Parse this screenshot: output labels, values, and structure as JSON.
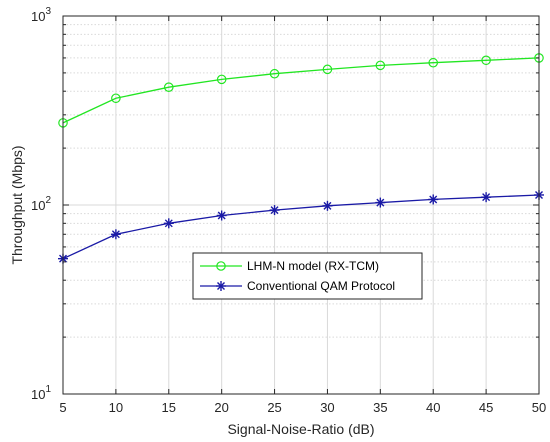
{
  "chart_data": {
    "type": "line",
    "x": [
      5,
      10,
      15,
      20,
      25,
      30,
      35,
      40,
      45,
      50
    ],
    "xlabel": "Signal-Noise-Ratio (dB)",
    "ylabel": "Throughput (Mbps)",
    "xlim": [
      5,
      50
    ],
    "ylim": [
      10,
      1000
    ],
    "yscale": "log",
    "grid": true,
    "xticks": [
      "5",
      "10",
      "15",
      "20",
      "25",
      "30",
      "35",
      "40",
      "45",
      "50"
    ],
    "yticks": [
      {
        "value": 10,
        "base": "10",
        "exp": "1"
      },
      {
        "value": 100,
        "base": "10",
        "exp": "2"
      },
      {
        "value": 1000,
        "base": "10",
        "exp": "3"
      }
    ],
    "legend_position": "center",
    "series": [
      {
        "name": "LHM-N model (RX-TCM)",
        "color": "#22e622",
        "marker": "circle",
        "values": [
          272,
          367,
          420,
          462,
          495,
          522,
          548,
          566,
          583,
          600
        ]
      },
      {
        "name": "Conventional QAM Protocol",
        "color": "#1a1aa6",
        "marker": "asterisk",
        "values": [
          52,
          70,
          80,
          88,
          94,
          99,
          103,
          107,
          110,
          113
        ]
      }
    ]
  }
}
